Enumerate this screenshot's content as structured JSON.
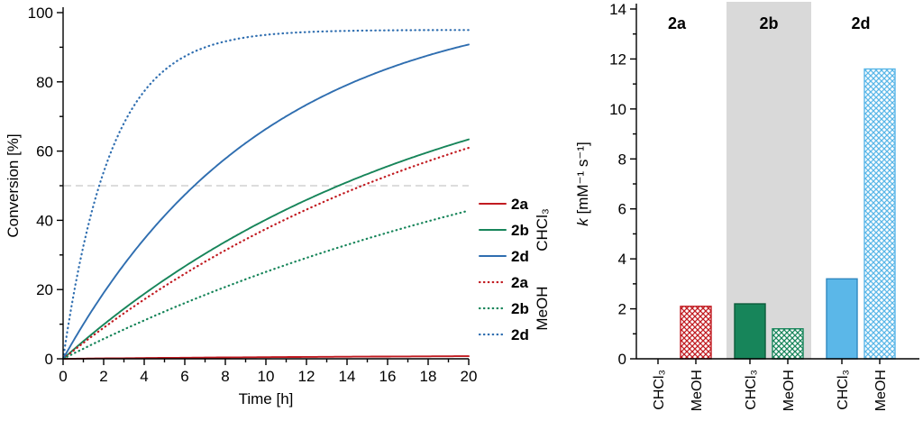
{
  "figure": {
    "background": "#ffffff",
    "axis_color": "#000000"
  },
  "chart_data": [
    {
      "type": "line",
      "title": "",
      "xlabel": "Time [h]",
      "ylabel": "Conversion [%]",
      "xlim": [
        0,
        20
      ],
      "ylim": [
        0,
        100
      ],
      "xticks": [
        0,
        2,
        4,
        6,
        8,
        10,
        12,
        14,
        16,
        18,
        20
      ],
      "yticks": [
        0,
        20,
        40,
        60,
        80,
        100
      ],
      "x_minor_step": 1,
      "y_minor_step": 10,
      "grid": false,
      "reference_line": {
        "y": 50,
        "style": "dashed",
        "color": "#c8c8c8"
      },
      "x_hours": [
        0,
        2,
        4,
        6,
        8,
        10,
        12,
        14,
        16,
        18,
        20
      ],
      "series": [
        {
          "name": "2a",
          "solvent": "CHCl₃",
          "style": "solid",
          "color": "#c11b21",
          "model": {
            "A": 1.2,
            "k": 0.05
          },
          "conversion_percent": [
            0,
            0.1,
            0.2,
            0.3,
            0.4,
            0.5,
            0.5,
            0.6,
            0.6,
            0.7,
            0.8
          ]
        },
        {
          "name": "2b",
          "solvent": "CHCl₃",
          "style": "solid",
          "color": "#17855a",
          "model": {
            "A": 95,
            "k": 0.055
          },
          "conversion_percent": [
            0,
            9.9,
            18.8,
            26.8,
            34.0,
            40.4,
            46.1,
            51.3,
            55.9,
            60.0,
            63.7
          ]
        },
        {
          "name": "2d",
          "solvent": "CHCl₃",
          "style": "solid",
          "color": "#2f6eb0",
          "model": {
            "A": 105,
            "k": 0.1
          },
          "conversion_percent": [
            0,
            19.0,
            34.6,
            47.4,
            57.8,
            66.4,
            73.4,
            79.1,
            83.8,
            87.7,
            90.8
          ]
        },
        {
          "name": "2a",
          "solvent": "MeOH",
          "style": "dotted",
          "color": "#c11b21",
          "model": {
            "A": 100,
            "k": 0.047
          },
          "conversion_percent": [
            0,
            9.0,
            17.1,
            24.6,
            31.3,
            37.5,
            43.1,
            48.2,
            52.9,
            57.1,
            61.0
          ]
        },
        {
          "name": "2b",
          "solvent": "MeOH",
          "style": "dotted",
          "color": "#17855a",
          "model": {
            "A": 85,
            "k": 0.035
          },
          "conversion_percent": [
            0,
            5.7,
            11.1,
            16.1,
            20.7,
            25.1,
            29.2,
            32.9,
            36.5,
            39.7,
            42.8
          ]
        },
        {
          "name": "2d",
          "solvent": "MeOH",
          "style": "dotted",
          "color": "#2f6eb0",
          "model": {
            "A": 95,
            "k": 0.42
          },
          "conversion_percent": [
            0,
            54.0,
            77.3,
            87.4,
            91.7,
            93.6,
            94.4,
            94.7,
            94.9,
            94.9,
            95.0
          ]
        }
      ],
      "legend": {
        "position": "right",
        "entries": [
          {
            "label": "2a",
            "style": "solid",
            "color": "#c11b21"
          },
          {
            "label": "2b",
            "style": "solid",
            "color": "#17855a"
          },
          {
            "label": "2d",
            "style": "solid",
            "color": "#2f6eb0"
          },
          {
            "label": "2a",
            "style": "dotted",
            "color": "#c11b21"
          },
          {
            "label": "2b",
            "style": "dotted",
            "color": "#17855a"
          },
          {
            "label": "2d",
            "style": "dotted",
            "color": "#2f6eb0"
          }
        ],
        "solvent_groups": [
          {
            "label": "CHCl₃",
            "entries": [
              0,
              1,
              2
            ]
          },
          {
            "label": "MeOH",
            "entries": [
              3,
              4,
              5
            ]
          }
        ]
      }
    },
    {
      "type": "bar",
      "title": "",
      "xlabel": "",
      "ylabel_parts": [
        {
          "text": "k",
          "italic": true
        },
        {
          "text": " [mM⁻¹ s⁻¹]",
          "italic": false
        }
      ],
      "ylim": [
        0,
        14
      ],
      "yticks": [
        0,
        2,
        4,
        6,
        8,
        10,
        12,
        14
      ],
      "y_minor_step": 1,
      "highlight_color": "#d9d9d9",
      "groups": [
        {
          "label": "2a",
          "highlighted": false,
          "bars": [
            {
              "solvent": "CHCl₃",
              "value": 0.0,
              "fill": "none",
              "color": "#c11b21",
              "edge": "#7e0f13"
            },
            {
              "solvent": "MeOH",
              "value": 2.1,
              "fill": "crosshatch",
              "color": "#c11b21",
              "edge": "#c11b21"
            }
          ]
        },
        {
          "label": "2b",
          "highlighted": true,
          "bars": [
            {
              "solvent": "CHCl₃",
              "value": 2.2,
              "fill": "solid",
              "color": "#17855a",
              "edge": "#0c5c3a"
            },
            {
              "solvent": "MeOH",
              "value": 1.2,
              "fill": "crosshatch",
              "color": "#17855a",
              "edge": "#17855a"
            }
          ]
        },
        {
          "label": "2d",
          "highlighted": false,
          "bars": [
            {
              "solvent": "CHCl₃",
              "value": 3.2,
              "fill": "solid",
              "color": "#5bb7e8",
              "edge": "#2f88c0"
            },
            {
              "solvent": "MeOH",
              "value": 11.6,
              "fill": "crosshatch",
              "color": "#5bb7e8",
              "edge": "#5bb7e8"
            }
          ]
        }
      ]
    }
  ]
}
